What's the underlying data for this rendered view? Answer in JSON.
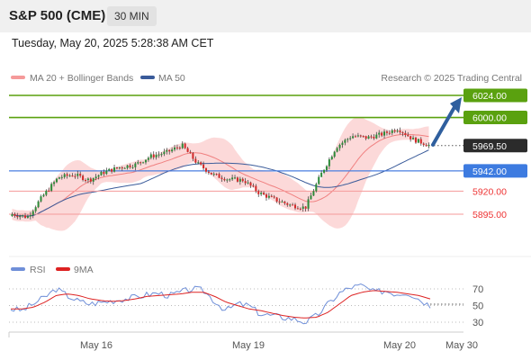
{
  "header": {
    "title": "S&P 500 (CME)",
    "timeframe": "30 MIN"
  },
  "timestamp": "Tuesday, May 20, 2025 5:28:38 AM CET",
  "attribution": "Research © 2025 Trading Central",
  "colors": {
    "green": "#5aa10f",
    "blue": "#4a7fe0",
    "red": "#ee3333",
    "salmon": "#f59a9a",
    "band": "#fcd2d2",
    "ma20": "#f08080",
    "ma50": "#3a5b9a",
    "arrow": "#2f5f9e",
    "rsi": "#6f8fd8",
    "rsi9ma": "#dd2222",
    "up": "#2e8b3a",
    "down": "#d32a2a"
  },
  "chart_data": [
    {
      "type": "candlestick",
      "legend": [
        {
          "name": "MA 20 + Bollinger Bands",
          "color": "#f59a9a"
        },
        {
          "name": "MA 50",
          "color": "#3a5b9a"
        }
      ],
      "levels": [
        {
          "value": 6024.0,
          "label": "6024.00",
          "style": "green-box"
        },
        {
          "value": 6000.0,
          "label": "6000.00",
          "style": "green-box"
        },
        {
          "value": 5969.5,
          "label": "5969.50",
          "style": "dark-box"
        },
        {
          "value": 5942.0,
          "label": "5942.00",
          "style": "blue-box"
        },
        {
          "value": 5920.0,
          "label": "5920.00",
          "style": "red-text"
        },
        {
          "value": 5895.0,
          "label": "5895.00",
          "style": "red-text"
        }
      ],
      "x_ticks": [
        "May 16",
        "May 19",
        "May 20",
        "May 30"
      ],
      "close_path": [
        5895,
        5892,
        5915,
        5935,
        5938,
        5932,
        5941,
        5946,
        5949,
        5958,
        5962,
        5970,
        5950,
        5938,
        5933,
        5932,
        5918,
        5911,
        5905,
        5902,
        5938,
        5968,
        5980,
        5978,
        5982,
        5988,
        5976,
        5970
      ],
      "projection": {
        "direction": "up",
        "target": 6024.0
      }
    },
    {
      "type": "line",
      "legend": [
        {
          "name": "RSI",
          "color": "#6f8fd8"
        },
        {
          "name": "9MA",
          "color": "#dd2222"
        }
      ],
      "y_ticks": [
        70,
        50,
        30
      ],
      "rsi_path": [
        46,
        44,
        52,
        60,
        70,
        62,
        55,
        52,
        54,
        56,
        58,
        60,
        63,
        65,
        62,
        66,
        70,
        68,
        55,
        44,
        52,
        50,
        40,
        38,
        36,
        34,
        30,
        38,
        52,
        65,
        72,
        74,
        66,
        68,
        64,
        66,
        58,
        50
      ],
      "ma_path": [
        46,
        46,
        48,
        54,
        62,
        64,
        62,
        58,
        56,
        55,
        56,
        58,
        61,
        62,
        63,
        64,
        66,
        66,
        61,
        54,
        50,
        46,
        44,
        41,
        38,
        36,
        35,
        36,
        42,
        52,
        62,
        66,
        68,
        67,
        66,
        64,
        62,
        58
      ]
    }
  ]
}
